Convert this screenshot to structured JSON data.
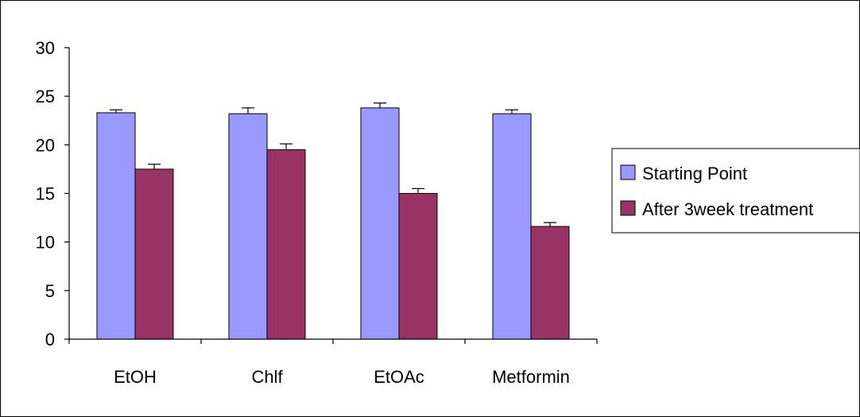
{
  "chart_data": {
    "type": "bar",
    "title": "",
    "xlabel": "",
    "ylabel": "",
    "categories": [
      "EtOH",
      "Chlf",
      "EtOAc",
      "Metformin"
    ],
    "series": [
      {
        "name": "Starting Point",
        "color": "#9999ff",
        "values": [
          23.3,
          23.2,
          23.8,
          23.2
        ],
        "errors": [
          0.3,
          0.6,
          0.5,
          0.4
        ]
      },
      {
        "name": "After 3week treatment",
        "color": "#993366",
        "values": [
          17.5,
          19.5,
          15.0,
          11.6
        ],
        "errors": [
          0.5,
          0.6,
          0.5,
          0.4
        ]
      }
    ],
    "ylim": [
      0,
      30
    ],
    "yticks": [
      "0",
      "5",
      "10",
      "15",
      "20",
      "25",
      "30"
    ],
    "grid": false,
    "legend_position": "right"
  }
}
